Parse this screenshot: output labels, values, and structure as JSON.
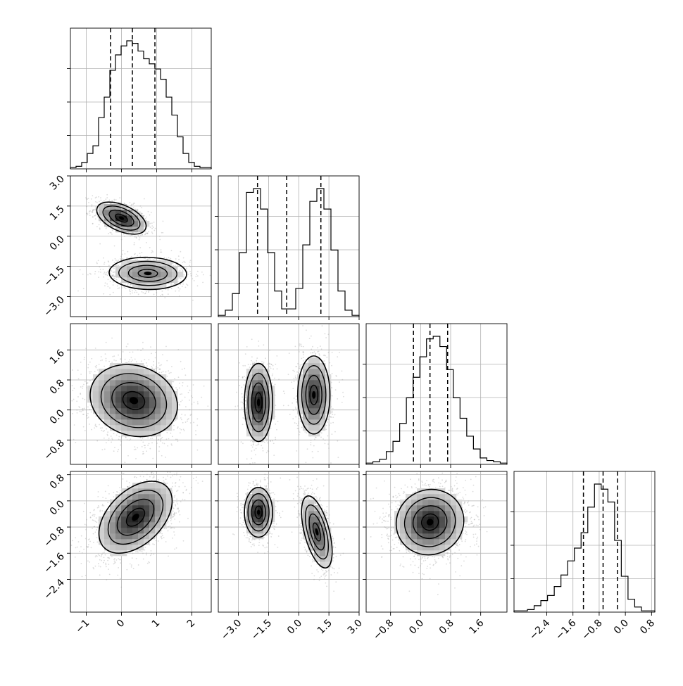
{
  "chart_data": {
    "type": "corner",
    "description_free": true,
    "grid": true,
    "params": [
      {
        "ticks": [
          -1,
          0,
          1,
          2
        ],
        "tick_labels": [
          "−1",
          "0",
          "1",
          "2"
        ],
        "range": [
          -1.45,
          2.55
        ]
      },
      {
        "ticks": [
          -3.0,
          -1.5,
          0.0,
          1.5,
          3.0
        ],
        "tick_labels": [
          "−3.0",
          "−1.5",
          "0.0",
          "1.5",
          "3.0"
        ],
        "range": [
          -4.0,
          3.0
        ]
      },
      {
        "ticks": [
          -0.8,
          0.0,
          0.8,
          1.6
        ],
        "tick_labels": [
          "−0.8",
          "0.0",
          "0.8",
          "1.6"
        ],
        "range": [
          -1.45,
          2.3
        ]
      },
      {
        "ticks": [
          -2.4,
          -1.6,
          -0.8,
          0.0,
          0.8
        ],
        "tick_labels": [
          "−2.4",
          "−1.6",
          "−0.8",
          "0.0",
          "0.8"
        ],
        "range": [
          -3.4,
          0.9
        ]
      }
    ],
    "histograms": [
      {
        "param": 0,
        "bins_from": -1.45,
        "bins_to": 2.55,
        "counts": [
          0.01,
          0.02,
          0.05,
          0.12,
          0.18,
          0.4,
          0.56,
          0.77,
          0.89,
          0.96,
          1.0,
          0.98,
          0.92,
          0.86,
          0.82,
          0.78,
          0.7,
          0.56,
          0.42,
          0.25,
          0.12,
          0.05,
          0.02,
          0.01,
          0.01
        ],
        "ymax": 1.0,
        "quantiles": [
          -0.31,
          0.31,
          0.95
        ]
      },
      {
        "param": 1,
        "bins_from": -4.0,
        "bins_to": 3.0,
        "counts": [
          0.01,
          0.05,
          0.18,
          0.5,
          0.97,
          1.0,
          0.84,
          0.5,
          0.2,
          0.06,
          0.06,
          0.22,
          0.56,
          0.9,
          1.0,
          0.84,
          0.52,
          0.2,
          0.05,
          0.01
        ],
        "ymax": 1.0,
        "quantiles": [
          -2.05,
          -0.6,
          1.1
        ]
      },
      {
        "param": 2,
        "bins_from": -1.45,
        "bins_to": 2.3,
        "counts": [
          0.01,
          0.02,
          0.04,
          0.1,
          0.18,
          0.32,
          0.52,
          0.68,
          0.84,
          0.98,
          1.0,
          0.92,
          0.74,
          0.52,
          0.36,
          0.22,
          0.12,
          0.05,
          0.03,
          0.02,
          0.01
        ],
        "ymax": 1.0,
        "quantiles": [
          -0.19,
          0.25,
          0.72
        ]
      },
      {
        "param": 3,
        "bins_from": -3.4,
        "bins_to": 0.9,
        "counts": [
          0.01,
          0.01,
          0.02,
          0.05,
          0.09,
          0.13,
          0.2,
          0.29,
          0.4,
          0.5,
          0.62,
          0.82,
          1.0,
          0.96,
          0.86,
          0.56,
          0.28,
          0.1,
          0.04,
          0.01,
          0.01
        ],
        "ymax": 1.0,
        "quantiles": [
          -1.28,
          -0.68,
          -0.24
        ]
      }
    ],
    "joint": [
      {
        "x": 0,
        "y": 1,
        "clusters": [
          {
            "mu": [
              0.0,
              0.9
            ],
            "sd": [
              0.35,
              0.4
            ],
            "rho": -0.5
          },
          {
            "mu": [
              0.75,
              -1.85
            ],
            "sd": [
              0.55,
              0.4
            ],
            "rho": -0.05
          }
        ]
      },
      {
        "x": 0,
        "y": 2,
        "clusters": [
          {
            "mu": [
              0.35,
              0.25
            ],
            "sd": [
              0.62,
              0.48
            ],
            "rho": -0.15
          }
        ]
      },
      {
        "x": 0,
        "y": 3,
        "clusters": [
          {
            "mu": [
              0.4,
              -0.5
            ],
            "sd": [
              0.52,
              0.55
            ],
            "rho": 0.45
          }
        ]
      },
      {
        "x": 1,
        "y": 2,
        "clusters": [
          {
            "mu": [
              -2.0,
              0.2
            ],
            "sd": [
              0.35,
              0.52
            ],
            "rho": 0.0
          },
          {
            "mu": [
              0.75,
              0.4
            ],
            "sd": [
              0.4,
              0.52
            ],
            "rho": 0.0
          }
        ]
      },
      {
        "x": 1,
        "y": 3,
        "clusters": [
          {
            "mu": [
              -2.0,
              -0.35
            ],
            "sd": [
              0.35,
              0.38
            ],
            "rho": 0.0
          },
          {
            "mu": [
              0.9,
              -0.95
            ],
            "sd": [
              0.38,
              0.55
            ],
            "rho": -0.55
          }
        ]
      },
      {
        "x": 2,
        "y": 3,
        "clusters": [
          {
            "mu": [
              0.25,
              -0.65
            ],
            "sd": [
              0.45,
              0.5
            ],
            "rho": 0.05
          }
        ]
      }
    ]
  }
}
